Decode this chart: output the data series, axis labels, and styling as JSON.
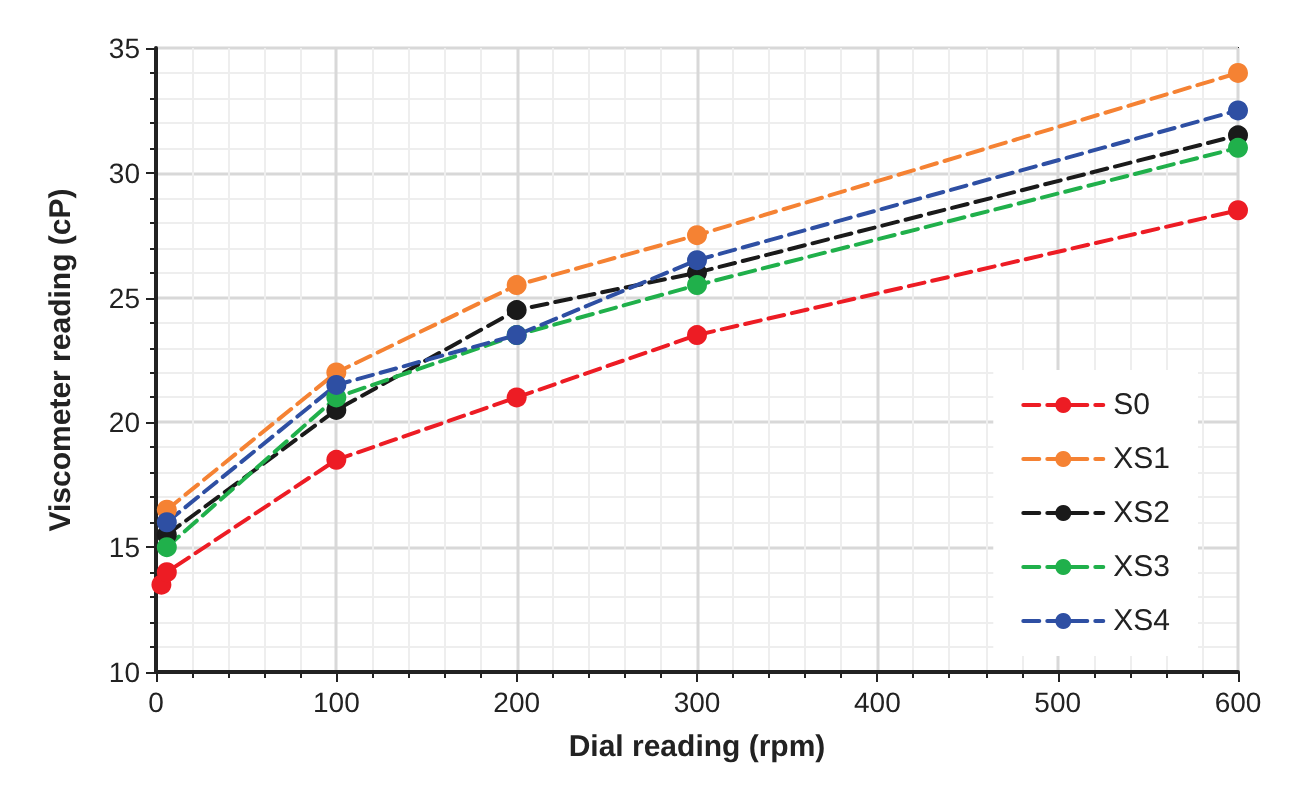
{
  "chart_data": {
    "type": "line",
    "xlabel": "Dial reading (rpm)",
    "ylabel": "Viscometer reading (cP)",
    "x": [
      3,
      6,
      100,
      200,
      300,
      600
    ],
    "xlim": [
      0,
      600
    ],
    "xticks": [
      0,
      100,
      200,
      300,
      400,
      500,
      600
    ],
    "ylim": [
      10,
      35
    ],
    "yticks": [
      10,
      15,
      20,
      25,
      30,
      35
    ],
    "grid": true,
    "legend": "bottom right",
    "marker": "circle",
    "line_style": "dashed",
    "series": [
      {
        "name": "S0",
        "color": "#ed1c24",
        "values": [
          13.5,
          14,
          18.5,
          21,
          23.5,
          28.5
        ]
      },
      {
        "name": "XS1",
        "color": "#f58233",
        "values": [
          null,
          16.5,
          22,
          25.5,
          27.5,
          34
        ]
      },
      {
        "name": "XS2",
        "color": "#1a1a1a",
        "values": [
          null,
          15.5,
          20.5,
          24.5,
          26,
          31.5
        ]
      },
      {
        "name": "XS3",
        "color": "#20b04b",
        "values": [
          null,
          15,
          21,
          23.5,
          25.5,
          31
        ]
      },
      {
        "name": "XS4",
        "color": "#2e4fa3",
        "values": [
          null,
          16,
          21.5,
          23.5,
          26.5,
          32.5
        ]
      }
    ]
  }
}
